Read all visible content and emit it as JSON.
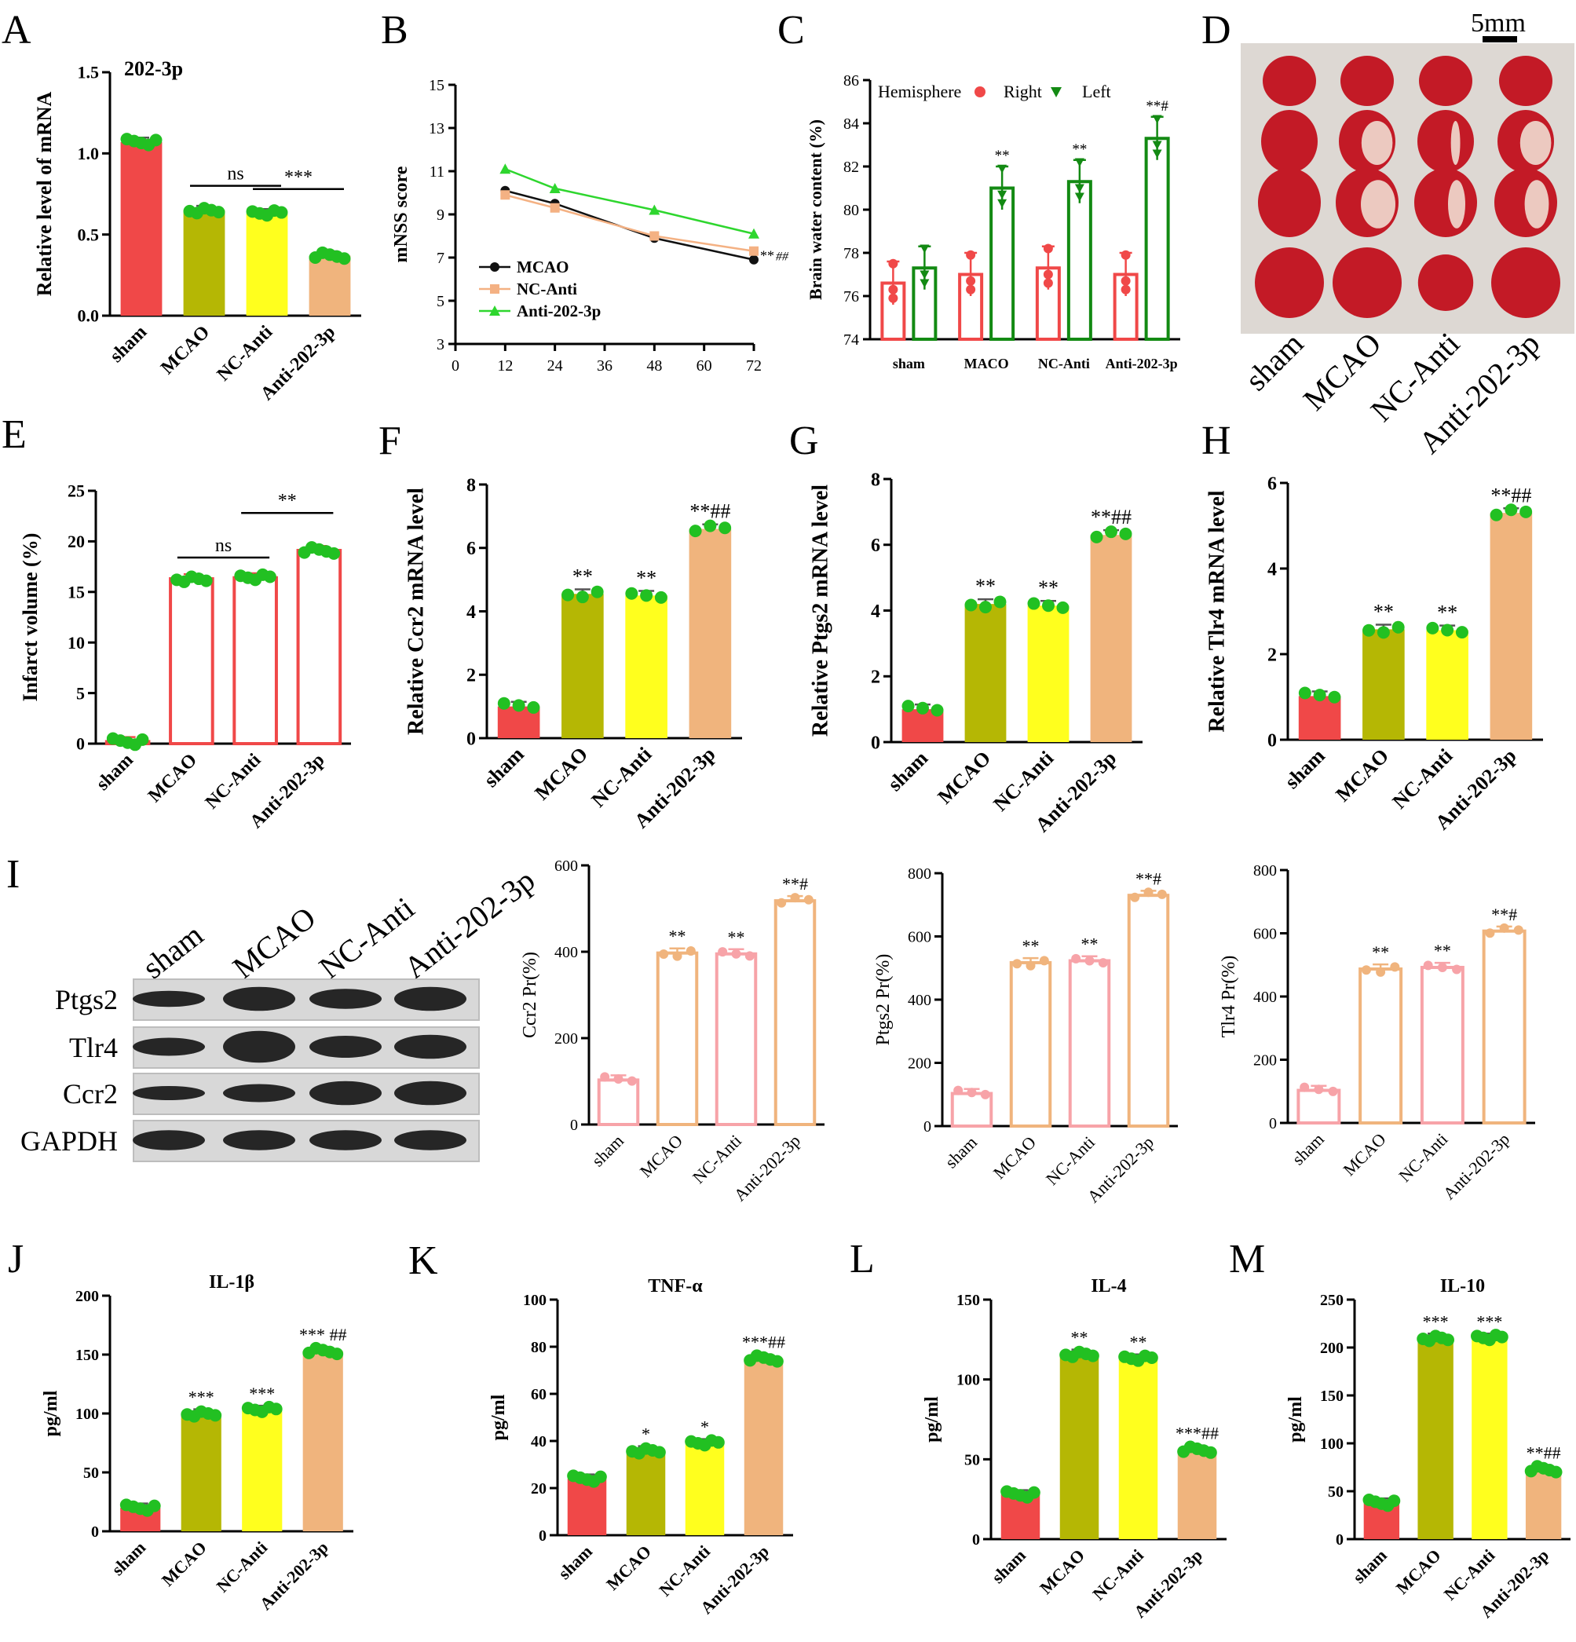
{
  "colors": {
    "red": "#f04848",
    "olive": "#b5b704",
    "yellow": "#ffff1e",
    "tan": "#f0b47d",
    "green": "#22c022",
    "pink": "#f7a3a8",
    "lineGreen": "#2ed62e",
    "lineBlack": "#111111",
    "lineTan": "#f4b183",
    "darkGreen": "#138a13"
  },
  "panels": {
    "A": "A",
    "B": "B",
    "C": "C",
    "D": "D",
    "E": "E",
    "F": "F",
    "G": "G",
    "H": "H",
    "I": "I",
    "J": "J",
    "K": "K",
    "L": "L",
    "M": "M"
  },
  "chart_data": [
    {
      "id": "A",
      "type": "bar",
      "title": "202-3p",
      "categories": [
        "sham",
        "MCAO",
        "NC-Anti",
        "Anti-202-3p"
      ],
      "values": [
        1.07,
        0.65,
        0.63,
        0.37
      ],
      "ylabel": "Relative level of mRNA",
      "ylim": [
        0,
        1.5
      ],
      "yticks": [
        "0.0",
        "0.5",
        "1.0",
        "1.5"
      ],
      "comparisons": [
        {
          "from": 1,
          "to": 2,
          "label": "ns"
        },
        {
          "from": 2,
          "to": 3,
          "label": "***"
        }
      ]
    },
    {
      "id": "B",
      "type": "line",
      "x": [
        12,
        24,
        48,
        72
      ],
      "series": [
        {
          "name": "MCAO",
          "values": [
            10.1,
            9.5,
            7.9,
            6.9
          ]
        },
        {
          "name": "NC-Anti",
          "values": [
            9.9,
            9.3,
            8.0,
            7.3
          ]
        },
        {
          "name": "Anti-202-3p",
          "values": [
            11.1,
            10.2,
            9.2,
            8.1
          ]
        }
      ],
      "ylabel": "mNSS score",
      "xlim": [
        0,
        72
      ],
      "ylim": [
        3,
        15
      ],
      "xticks": [
        "0",
        "12",
        "24",
        "36",
        "48",
        "60",
        "72"
      ],
      "yticks": [
        "3",
        "5",
        "7",
        "9",
        "11",
        "13",
        "15"
      ],
      "annotation_star": "**",
      "annotation_hash": "##"
    },
    {
      "id": "C",
      "type": "bar",
      "categories": [
        "sham",
        "MACO",
        "NC-Anti",
        "Anti-202-3p"
      ],
      "legend_title": "Hemisphere",
      "series": [
        {
          "name": "Right",
          "values": [
            76.6,
            77.0,
            77.3,
            77.0
          ]
        },
        {
          "name": "Left",
          "values": [
            77.3,
            81.0,
            81.3,
            83.3
          ]
        }
      ],
      "ylabel": "Brain water content (%)",
      "ylim": [
        74,
        86
      ],
      "yticks": [
        "74",
        "76",
        "78",
        "80",
        "82",
        "84",
        "86"
      ],
      "marks": [
        "",
        "**",
        "**",
        "**#"
      ]
    },
    {
      "id": "D",
      "type": "image",
      "scale_label": "5mm",
      "lanes": [
        "sham",
        "MCAO",
        "NC-Anti",
        "Anti-202-3p"
      ]
    },
    {
      "id": "E",
      "type": "bar",
      "categories": [
        "sham",
        "MCAO",
        "NC-Anti",
        "Anti-202-3p"
      ],
      "values": [
        0.2,
        16.3,
        16.4,
        19.1
      ],
      "ylabel": "Infarct volume (%)",
      "ylim": [
        0,
        25
      ],
      "yticks": [
        "0",
        "5",
        "10",
        "15",
        "20",
        "25"
      ],
      "comparisons": [
        {
          "from": 1,
          "to": 2,
          "label": "ns"
        },
        {
          "from": 2,
          "to": 3,
          "label": "**"
        }
      ]
    },
    {
      "id": "F",
      "type": "bar",
      "categories": [
        "sham",
        "MCAO",
        "NC-Anti",
        "Anti-202-3p"
      ],
      "values": [
        1.0,
        4.55,
        4.5,
        6.6
      ],
      "ylabel": "Relative Ccr2 mRNA level",
      "ylim": [
        0,
        8
      ],
      "yticks": [
        "0",
        "2",
        "4",
        "6",
        "8"
      ],
      "marks": [
        "",
        "**",
        "**",
        "**##"
      ]
    },
    {
      "id": "G",
      "type": "bar",
      "categories": [
        "sham",
        "MCAO",
        "NC-Anti",
        "Anti-202-3p"
      ],
      "values": [
        1.0,
        4.2,
        4.15,
        6.3
      ],
      "ylabel": "Relative Ptgs2 mRNA level",
      "ylim": [
        0,
        8
      ],
      "yticks": [
        "0",
        "2",
        "4",
        "6",
        "8"
      ],
      "marks": [
        "",
        "**",
        "**",
        "**##"
      ]
    },
    {
      "id": "H",
      "type": "bar",
      "categories": [
        "sham",
        "MCAO",
        "NC-Anti",
        "Anti-202-3p"
      ],
      "values": [
        1.02,
        2.58,
        2.56,
        5.3
      ],
      "ylabel": "Relative Tlr4 mRNA level",
      "ylim": [
        0,
        6
      ],
      "yticks": [
        "0",
        "2",
        "4",
        "6"
      ],
      "marks": [
        "",
        "**",
        "**",
        "**##"
      ]
    },
    {
      "id": "I-blot",
      "type": "image",
      "lanes": [
        "sham",
        "MCAO",
        "NC-Anti",
        "Anti-202-3p"
      ],
      "rows": [
        "Ptgs2",
        "Tlr4",
        "Ccr2",
        "GAPDH"
      ]
    },
    {
      "id": "I1",
      "type": "bar",
      "categories": [
        "sham",
        "MCAO",
        "NC-Anti",
        "Anti-202-3p"
      ],
      "values": [
        103,
        397,
        395,
        518
      ],
      "ylabel": "Ccr2 Pr(%)",
      "ylim": [
        0,
        600
      ],
      "yticks": [
        "0",
        "200",
        "400",
        "600"
      ],
      "marks": [
        "",
        "**",
        "**",
        "**#"
      ]
    },
    {
      "id": "I2",
      "type": "bar",
      "categories": [
        "sham",
        "MCAO",
        "NC-Anti",
        "Anti-202-3p"
      ],
      "values": [
        103,
        517,
        523,
        730
      ],
      "ylabel": "Ptgs2 Pr(%)",
      "ylim": [
        0,
        800
      ],
      "yticks": [
        "0",
        "200",
        "400",
        "600",
        "800"
      ],
      "marks": [
        "",
        "**",
        "**",
        "**#"
      ]
    },
    {
      "id": "I3",
      "type": "bar",
      "categories": [
        "sham",
        "MCAO",
        "NC-Anti",
        "Anti-202-3p"
      ],
      "values": [
        103,
        487,
        492,
        607
      ],
      "ylabel": "Tlr4 Pr(%)",
      "ylim": [
        0,
        800
      ],
      "yticks": [
        "0",
        "200",
        "400",
        "600",
        "800"
      ],
      "marks": [
        "",
        "**",
        "**",
        "**#"
      ]
    },
    {
      "id": "J",
      "type": "bar",
      "title": "IL-1β",
      "categories": [
        "sham",
        "MCAO",
        "NC-Anti",
        "Anti-202-3p"
      ],
      "values": [
        20,
        100,
        103,
        153
      ],
      "ylabel": "pg/ml",
      "ylim": [
        0,
        200
      ],
      "yticks": [
        "0",
        "50",
        "100",
        "150",
        "200"
      ],
      "marks": [
        "",
        "***",
        "***",
        "*** ##"
      ]
    },
    {
      "id": "K",
      "type": "bar",
      "title": "TNF-α",
      "categories": [
        "sham",
        "MCAO",
        "NC-Anti",
        "Anti-202-3p"
      ],
      "values": [
        24,
        36,
        39,
        75
      ],
      "ylabel": "pg/ml",
      "ylim": [
        0,
        100
      ],
      "yticks": [
        "0",
        "20",
        "40",
        "60",
        "80",
        "100"
      ],
      "marks": [
        "",
        "*",
        "*",
        "***##"
      ]
    },
    {
      "id": "L",
      "type": "bar",
      "title": "IL-4",
      "categories": [
        "sham",
        "MCAO",
        "NC-Anti",
        "Anti-202-3p"
      ],
      "values": [
        28,
        116,
        113,
        56
      ],
      "ylabel": "pg/ml",
      "ylim": [
        0,
        150
      ],
      "yticks": [
        "0",
        "50",
        "100",
        "150"
      ],
      "marks": [
        "",
        "**",
        "**",
        "***##"
      ]
    },
    {
      "id": "M",
      "type": "bar",
      "title": "IL-10",
      "categories": [
        "sham",
        "MCAO",
        "NC-Anti",
        "Anti-202-3p"
      ],
      "values": [
        38,
        210,
        210,
        73
      ],
      "ylabel": "pg/ml",
      "ylim": [
        0,
        250
      ],
      "yticks": [
        "0",
        "50",
        "100",
        "150",
        "200",
        "250"
      ],
      "marks": [
        "",
        "***",
        "***",
        "**##"
      ]
    }
  ]
}
